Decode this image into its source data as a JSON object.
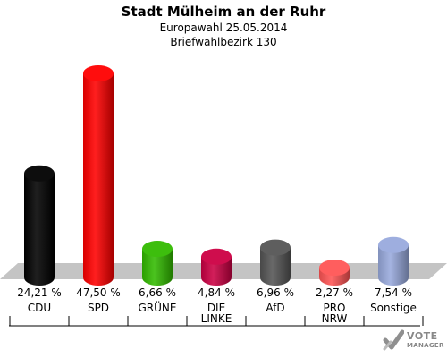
{
  "header": {
    "title": "Stadt Mülheim an der Ruhr",
    "subtitle1": "Europawahl 25.05.2014",
    "subtitle2": "Briefwahlbezirk 130"
  },
  "chart_data": {
    "type": "bar",
    "categories": [
      "CDU",
      "SPD",
      "GRÜNE",
      "DIE LINKE",
      "AfD",
      "PRO NRW",
      "Sonstige"
    ],
    "category_lines": [
      [
        "CDU"
      ],
      [
        "SPD"
      ],
      [
        "GRÜNE"
      ],
      [
        "DIE",
        "LINKE"
      ],
      [
        "AfD"
      ],
      [
        "PRO",
        "NRW"
      ],
      [
        "Sonstige"
      ]
    ],
    "values": [
      24.21,
      47.5,
      6.66,
      4.84,
      6.96,
      2.27,
      7.54
    ],
    "value_labels": [
      "24,21 %",
      "47,50 %",
      "6,66 %",
      "4,84 %",
      "6,96 %",
      "2,27 %",
      "7,54 %"
    ],
    "colors": [
      "#000000",
      "#ff0000",
      "#33bb00",
      "#cc0044",
      "#555555",
      "#ff5555",
      "#99aadd"
    ],
    "ylim": [
      0,
      50
    ],
    "grid": false,
    "legend": "none"
  },
  "logo": {
    "line1": "VOTE",
    "line2": "MANAGER"
  }
}
